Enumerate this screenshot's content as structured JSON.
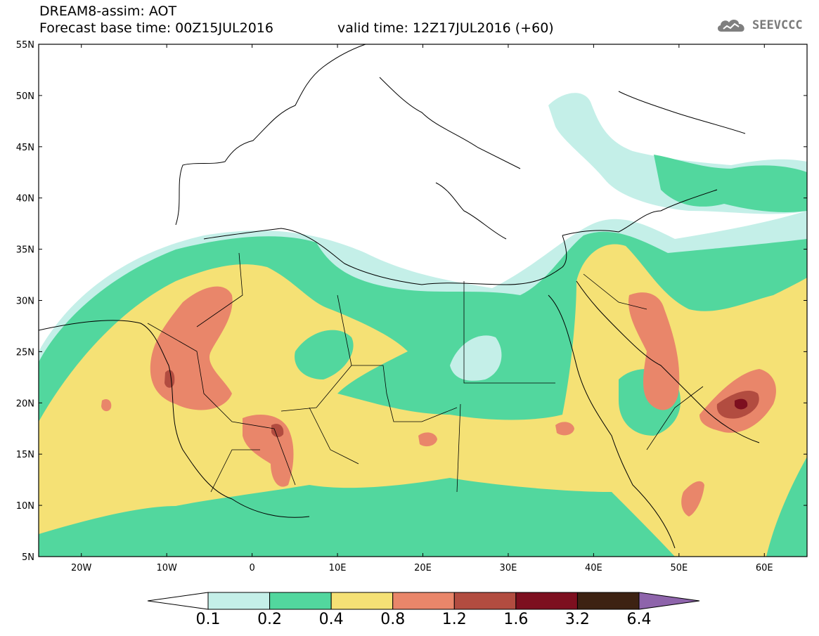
{
  "header": {
    "title": "DREAM8-assim: AOT",
    "base_time": "Forecast base time: 00Z15JUL2016",
    "valid_time": "valid time: 12Z17JUL2016 (+60)",
    "logo_text": "SEEVCCC"
  },
  "map": {
    "lat_labels": [
      "55N",
      "50N",
      "45N",
      "40N",
      "35N",
      "30N",
      "25N",
      "20N",
      "15N",
      "10N",
      "5N"
    ],
    "lon_labels": [
      "20W",
      "10W",
      "0",
      "10E",
      "20E",
      "30E",
      "40E",
      "50E",
      "60E"
    ],
    "extent": {
      "lon_min": -25,
      "lon_max": 65,
      "lat_min": 5,
      "lat_max": 55
    }
  },
  "colorbar": {
    "levels": [
      "0.1",
      "0.2",
      "0.4",
      "0.8",
      "1.2",
      "1.6",
      "3.2",
      "6.4"
    ],
    "colors": [
      "#ffffff",
      "#c4efe8",
      "#52d79e",
      "#f5e175",
      "#e9866a",
      "#b24c40",
      "#7d0f1f",
      "#3d2212",
      "#8e64ab"
    ]
  }
}
